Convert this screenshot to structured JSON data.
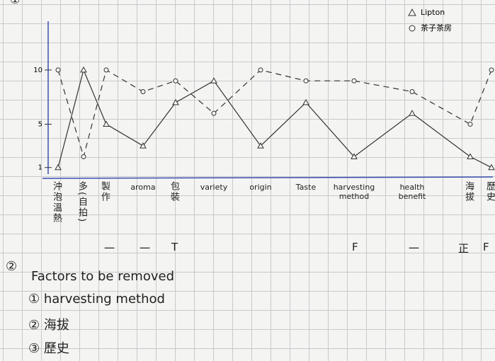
{
  "chart_data": {
    "type": "line",
    "section_mark": "①",
    "categories": [
      "沖泡溫熱",
      "多(自拍)",
      "製作",
      "aroma",
      "包裝",
      "variety",
      "origin",
      "Taste",
      "harvesting method",
      "health benefit",
      "海拔",
      "歷史"
    ],
    "series": [
      {
        "name": "Lipton",
        "color": "#333333",
        "line_style": "solid",
        "marker": "triangle",
        "values": [
          1,
          10,
          5,
          3,
          7,
          9,
          3,
          7,
          2,
          6,
          2,
          1
        ]
      },
      {
        "name": "茶子茶房",
        "color": "#333333",
        "line_style": "dashed",
        "marker": "circle",
        "values": [
          10,
          2,
          10,
          8,
          9,
          6,
          10,
          9,
          9,
          8,
          5,
          10
        ]
      }
    ],
    "ylim": [
      0,
      14.5
    ],
    "yticks": [
      1,
      5,
      10
    ],
    "legend": "top-right",
    "axis_color": "#3b4fb0",
    "tallies": [
      "一",
      "一",
      "T",
      "F",
      "一",
      "正",
      "F"
    ],
    "notes": {
      "number": "②",
      "heading": "Factors to be removed",
      "items": [
        "① harvesting method",
        "② 海拔",
        "③ 歷史"
      ]
    }
  }
}
